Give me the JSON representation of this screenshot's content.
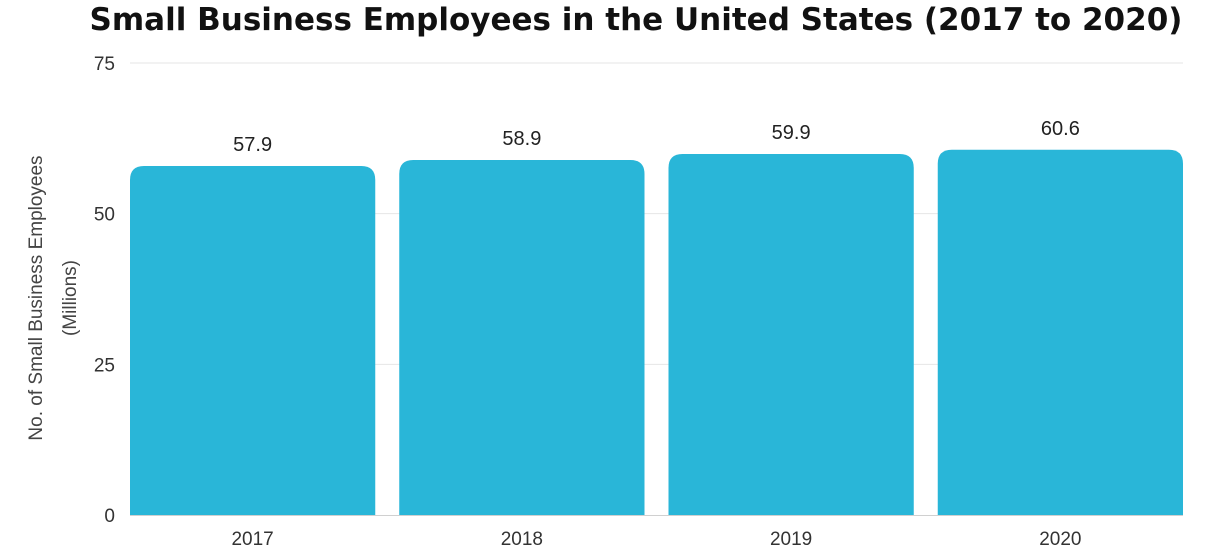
{
  "chart_data": {
    "type": "bar",
    "title": "Small Business Employees in the United States (2017 to 2020)",
    "ylabel_line1": "No. of Small Business Employees",
    "ylabel_line2": "(Millions)",
    "xlabel": "",
    "categories": [
      "2017",
      "2018",
      "2019",
      "2020"
    ],
    "values": [
      57.9,
      58.9,
      59.9,
      60.6
    ],
    "value_labels": [
      "57.9",
      "58.9",
      "59.9",
      "60.6"
    ],
    "ylim": [
      0,
      75
    ],
    "yticks": [
      0,
      25,
      50,
      75
    ],
    "ytick_labels": [
      "0",
      "25",
      "50",
      "75"
    ],
    "grid": true,
    "legend": "none",
    "bar_color": "#29b6d8"
  }
}
